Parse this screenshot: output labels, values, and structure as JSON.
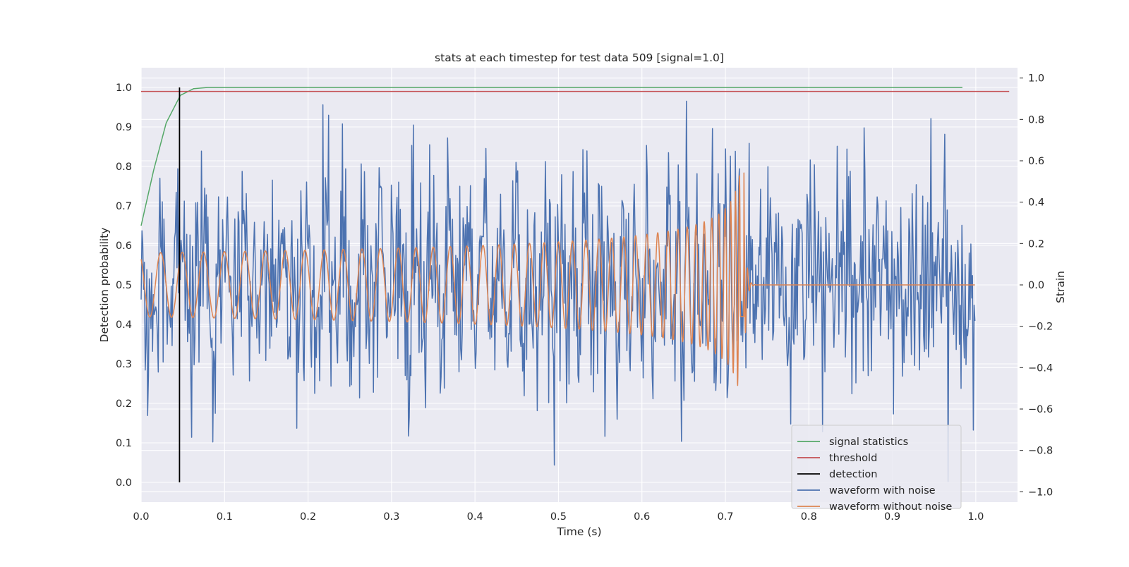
{
  "chart_data": {
    "type": "line",
    "title": "stats at each timestep for test data 509 [signal=1.0]",
    "xlabel": "Time (s)",
    "ylabel_left": "Detection probability",
    "ylabel_right": "Strain",
    "xlim": [
      0.0,
      1.05
    ],
    "ylim_left": [
      -0.05,
      1.05
    ],
    "ylim_right": [
      -1.05,
      1.05
    ],
    "x_ticks": [
      "0.0",
      "0.1",
      "0.2",
      "0.3",
      "0.4",
      "0.5",
      "0.6",
      "0.7",
      "0.8",
      "0.9",
      "1.0"
    ],
    "y_left_ticks": [
      "0.0",
      "0.1",
      "0.2",
      "0.3",
      "0.4",
      "0.5",
      "0.6",
      "0.7",
      "0.8",
      "0.9",
      "1.0"
    ],
    "y_right_ticks": [
      "−1.0",
      "−0.8",
      "−0.6",
      "−0.4",
      "−0.2",
      "0.0",
      "0.2",
      "0.4",
      "0.6",
      "0.8",
      "1.0"
    ],
    "grid": true,
    "legend_position": "lower-right",
    "colors": {
      "background": "#eaeaf2",
      "grid": "#ffffff",
      "signal_statistics": "#55a868",
      "threshold": "#c44e52",
      "detection": "#000000",
      "waveform_with_noise": "#4c72b0",
      "waveform_without_noise": "#dd8452"
    },
    "legend": [
      {
        "label": "signal statistics",
        "series": "signal_statistics"
      },
      {
        "label": "threshold",
        "series": "threshold"
      },
      {
        "label": "detection",
        "series": "detection"
      },
      {
        "label": "waveform with noise",
        "series": "waveform_with_noise"
      },
      {
        "label": "waveform without noise",
        "series": "waveform_without_noise"
      }
    ],
    "signal_statistics": {
      "axis": "left",
      "x": [
        0.0,
        0.015,
        0.03,
        0.047,
        0.063,
        0.08,
        0.1,
        0.2,
        0.4,
        0.6,
        0.8,
        0.984
      ],
      "y": [
        0.65,
        0.79,
        0.91,
        0.98,
        0.997,
        1.0,
        1.0,
        1.0,
        1.0,
        1.0,
        1.0,
        1.0
      ]
    },
    "threshold": {
      "axis": "left",
      "x": [
        0.0,
        1.04
      ],
      "y": [
        0.99,
        0.99
      ]
    },
    "detection": {
      "axis": "left",
      "x": [
        0.046,
        0.046
      ],
      "y": [
        0.0,
        1.0
      ]
    },
    "waveform_without_noise": {
      "axis": "right",
      "x_range": [
        0.0,
        0.999
      ],
      "merger_time": 0.722,
      "base_amplitude": 0.155,
      "base_frequency_hz": 38,
      "peak_amplitude": 0.62,
      "peak_frequency_hz": 220
    },
    "waveform_with_noise": {
      "axis": "right",
      "x_range": [
        0.0,
        0.999
      ],
      "noise_std": 0.27,
      "range": [
        -0.95,
        1.0
      ]
    }
  }
}
